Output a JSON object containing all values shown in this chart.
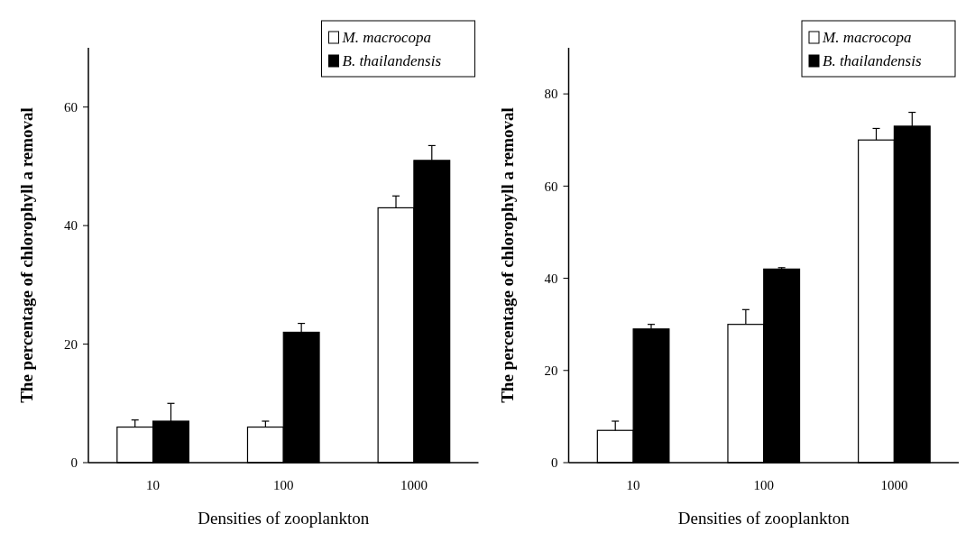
{
  "chart_data": [
    {
      "type": "bar",
      "xlabel": "Densities  of zooplankton",
      "ylabel": "The  percentage  of  chlorophyll   a  removal",
      "categories": [
        "10",
        "100",
        "1000"
      ],
      "ylim": [
        0,
        70
      ],
      "yticks": [
        0,
        20,
        40,
        60
      ],
      "legend": "top right",
      "series": [
        {
          "name": "M. macrocopa",
          "color": "#ffffff",
          "values": [
            6,
            6,
            43
          ],
          "errors": [
            [
              6,
              7.2
            ],
            [
              6,
              7
            ],
            [
              43,
              45
            ]
          ]
        },
        {
          "name": "B. thailandensis",
          "color": "#000000",
          "values": [
            7,
            22,
            51
          ],
          "errors": [
            [
              7,
              10
            ],
            [
              22,
              23.5
            ],
            [
              51,
              53.5
            ]
          ]
        }
      ]
    },
    {
      "type": "bar",
      "xlabel": "Densities  of zooplankton",
      "ylabel": "The  percentage  of  chlorophyll   a  removal",
      "categories": [
        "10",
        "100",
        "1000"
      ],
      "ylim": [
        0,
        90
      ],
      "yticks": [
        0,
        20,
        40,
        60,
        80
      ],
      "legend": "top right",
      "series": [
        {
          "name": "M. macrocopa",
          "color": "#ffffff",
          "values": [
            7,
            30,
            70
          ],
          "errors": [
            [
              7,
              9
            ],
            [
              30,
              33.2
            ],
            [
              70,
              72.5
            ]
          ]
        },
        {
          "name": "B. thailandensis",
          "color": "#000000",
          "values": [
            29,
            42,
            73
          ],
          "errors": [
            [
              29,
              30
            ],
            [
              42,
              42.3
            ],
            [
              73,
              76
            ]
          ]
        }
      ]
    }
  ]
}
